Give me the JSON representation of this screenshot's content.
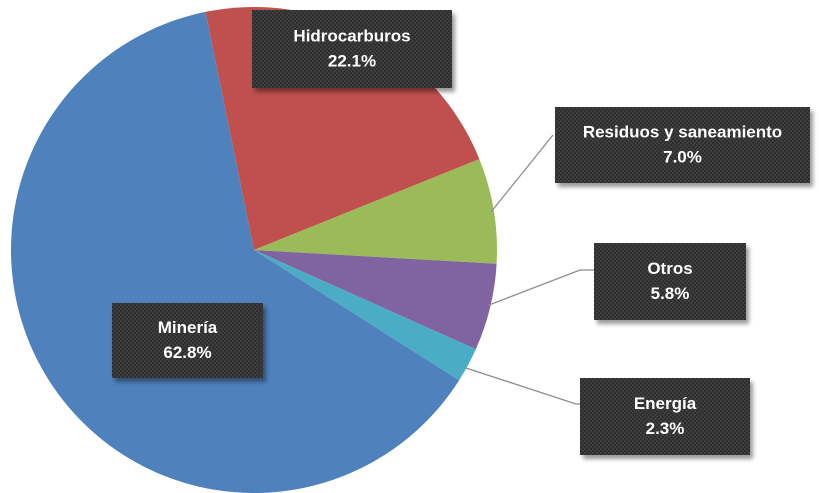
{
  "chart_data": {
    "type": "pie",
    "categories": [
      "Minería",
      "Hidrocarburos",
      "Residuos y saneamiento",
      "Otros",
      "Energía"
    ],
    "values": [
      62.8,
      22.1,
      7.0,
      5.8,
      2.3
    ],
    "value_labels": [
      "62.8%",
      "22.1%",
      "7.0%",
      "5.8%",
      "2.3%"
    ],
    "colors": [
      "#4f81bd",
      "#c0504d",
      "#9bbb59",
      "#8064a2",
      "#4bacc6"
    ]
  }
}
